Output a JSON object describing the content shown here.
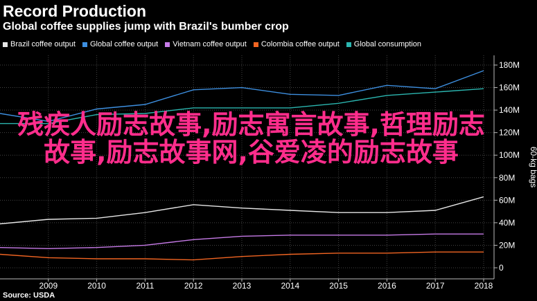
{
  "title": "Record Production",
  "subtitle": "Global coffee supplies jump with Brazil's bumber crop",
  "source": "Source: USDA",
  "overlay_text": "残疾人励志故事,励志寓言故事,哲理励志故事,励志故事网,谷爱凌的励志故事",
  "chart_data": {
    "type": "line",
    "title": "Record Production",
    "subtitle": "Global coffee supplies jump with Brazil's bumber crop",
    "xlabel": "",
    "ylabel": "60-kg bags",
    "x": [
      2008,
      2009,
      2010,
      2011,
      2012,
      2013,
      2014,
      2015,
      2016,
      2017,
      2018
    ],
    "xlim": [
      2008,
      2018
    ],
    "ylim": [
      0,
      180
    ],
    "x_ticks": [
      "2009",
      "2010",
      "2011",
      "2012",
      "2013",
      "2014",
      "2015",
      "2016",
      "2017",
      "2018"
    ],
    "y_ticks": [
      {
        "value": 0,
        "label": "0"
      },
      {
        "value": 20,
        "label": "20M"
      },
      {
        "value": 40,
        "label": "40M"
      },
      {
        "value": 60,
        "label": "60M"
      },
      {
        "value": 80,
        "label": "80M"
      },
      {
        "value": 100,
        "label": "100M"
      },
      {
        "value": 120,
        "label": "120M"
      },
      {
        "value": 140,
        "label": "140M"
      },
      {
        "value": 160,
        "label": "160M"
      },
      {
        "value": 180,
        "label": "180M"
      }
    ],
    "grid": true,
    "legend_position": "top-left",
    "series": [
      {
        "name": "Brazil coffee output",
        "color": "#e6e6e6",
        "values": [
          39,
          43,
          44,
          49,
          56,
          53,
          51,
          49,
          49,
          51,
          63
        ]
      },
      {
        "name": "Global coffee output",
        "color": "#3d8fe0",
        "values": [
          137,
          130,
          141,
          145,
          158,
          160,
          154,
          153,
          162,
          159,
          175
        ]
      },
      {
        "name": "Vietnam coffee output",
        "color": "#c77be8",
        "values": [
          18,
          17,
          18,
          20,
          25,
          28,
          29,
          29,
          29,
          30,
          30
        ]
      },
      {
        "name": "Colombia coffee output",
        "color": "#f26522",
        "values": [
          12,
          9,
          8,
          8,
          7,
          10,
          12,
          13,
          13,
          14,
          14
        ]
      },
      {
        "name": "Global consumption",
        "color": "#2bb6b0",
        "values": [
          128,
          128,
          136,
          137,
          142,
          142,
          142,
          146,
          153,
          156,
          159
        ]
      }
    ]
  }
}
